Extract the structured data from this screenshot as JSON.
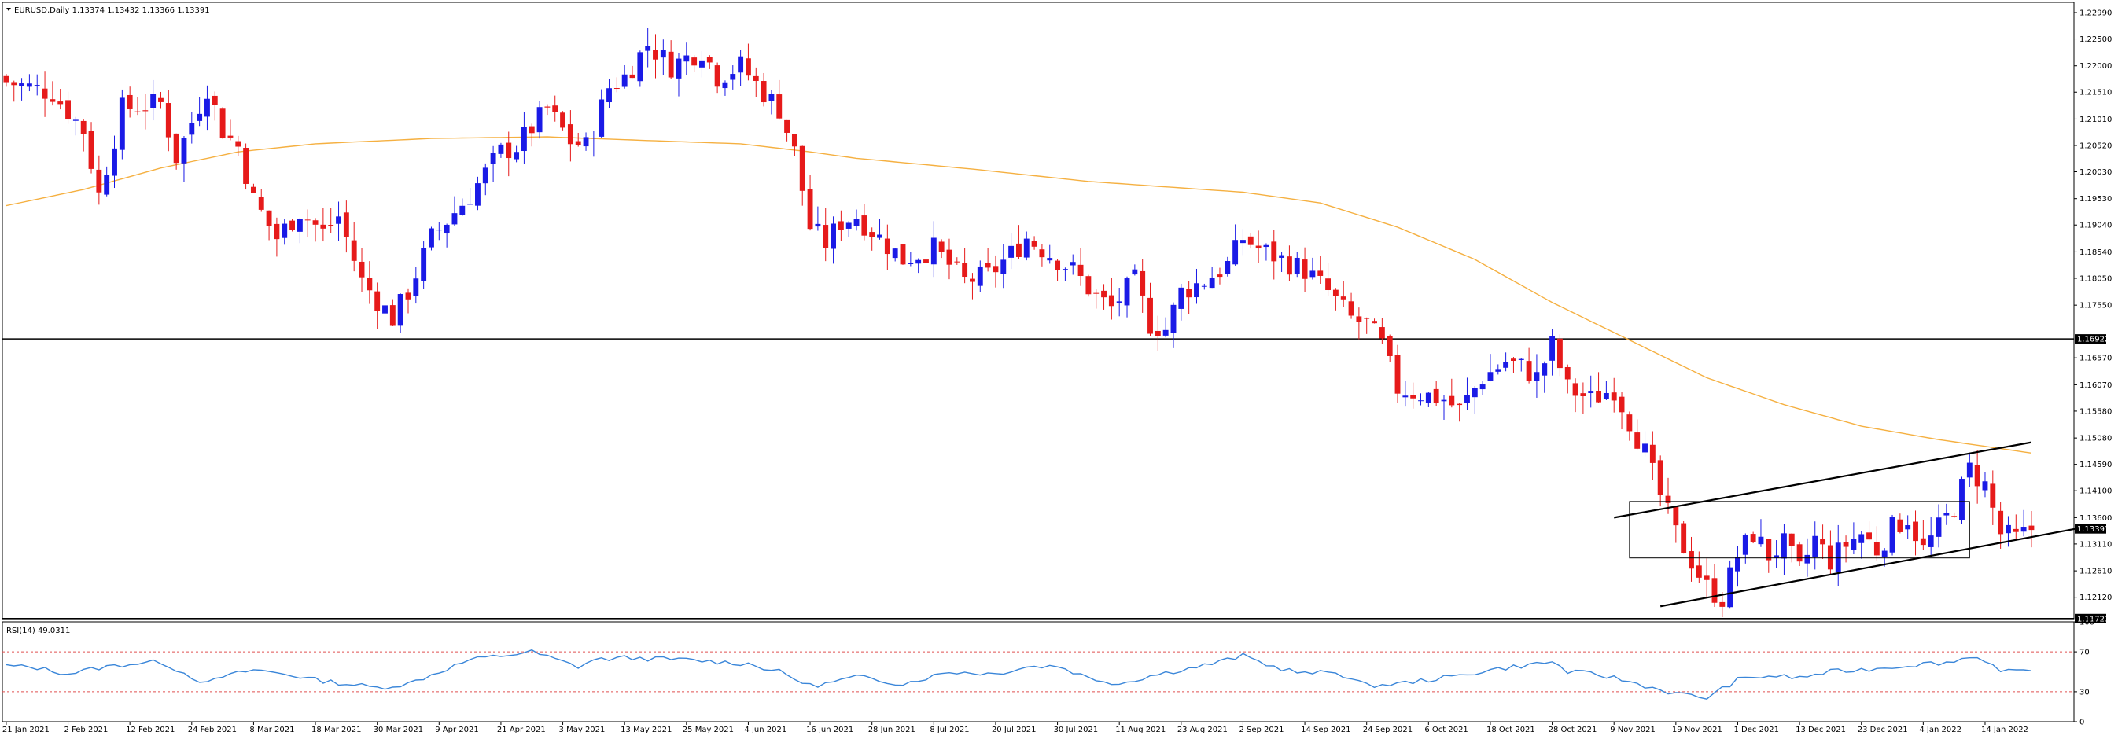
{
  "header": {
    "symbol_line": "EURUSD,Daily  1.13374 1.13432 1.13366 1.13391",
    "rsi_label": "RSI(14) 49.0311"
  },
  "colors": {
    "bull": "#1a1ae6",
    "bear": "#e61a1a",
    "ma": "#f5b041",
    "rsi": "#3a86d9",
    "rsi_levels": "#e05050",
    "hline": "#000000",
    "trend": "#000000"
  },
  "chart_data": [
    {
      "type": "candlestick",
      "title": "EURUSD,Daily",
      "ohlc_readout": [
        1.13374,
        1.13432,
        1.13366,
        1.13391
      ],
      "ylim": [
        1.1172,
        1.2318
      ],
      "y_ticks": [
        "1.22990",
        "1.22500",
        "1.22000",
        "1.21510",
        "1.21010",
        "1.20520",
        "1.20030",
        "1.19530",
        "1.19040",
        "1.18540",
        "1.18050",
        "1.17550",
        "1.16570",
        "1.16070",
        "1.15580",
        "1.15080",
        "1.14590",
        "1.14100",
        "1.13600",
        "1.13110",
        "1.12610",
        "1.12120"
      ],
      "price_markers": [
        {
          "label": "1.16922",
          "value": 1.16922
        },
        {
          "label": "1.13391",
          "value": 1.13391
        },
        {
          "label": "1.11723",
          "value": 1.11723
        }
      ],
      "horizontal_lines": [
        1.16922,
        1.11723
      ],
      "x_start_date": "2021-01-21",
      "x_ticks": [
        {
          "label": "21 Jan 2021",
          "i": 0
        },
        {
          "label": "2 Feb 2021",
          "i": 8
        },
        {
          "label": "12 Feb 2021",
          "i": 16
        },
        {
          "label": "24 Feb 2021",
          "i": 24
        },
        {
          "label": "8 Mar 2021",
          "i": 32
        },
        {
          "label": "18 Mar 2021",
          "i": 40
        },
        {
          "label": "30 Mar 2021",
          "i": 48
        },
        {
          "label": "9 Apr 2021",
          "i": 56
        },
        {
          "label": "21 Apr 2021",
          "i": 64
        },
        {
          "label": "3 May 2021",
          "i": 72
        },
        {
          "label": "13 May 2021",
          "i": 80
        },
        {
          "label": "25 May 2021",
          "i": 88
        },
        {
          "label": "4 Jun 2021",
          "i": 96
        },
        {
          "label": "16 Jun 2021",
          "i": 104
        },
        {
          "label": "28 Jun 2021",
          "i": 112
        },
        {
          "label": "8 Jul 2021",
          "i": 120
        },
        {
          "label": "20 Jul 2021",
          "i": 128
        },
        {
          "label": "30 Jul 2021",
          "i": 136
        },
        {
          "label": "11 Aug 2021",
          "i": 144
        },
        {
          "label": "23 Aug 2021",
          "i": 152
        },
        {
          "label": "2 Sep 2021",
          "i": 160
        },
        {
          "label": "14 Sep 2021",
          "i": 168
        },
        {
          "label": "24 Sep 2021",
          "i": 176
        },
        {
          "label": "6 Oct 2021",
          "i": 184
        },
        {
          "label": "18 Oct 2021",
          "i": 192
        },
        {
          "label": "28 Oct 2021",
          "i": 200
        },
        {
          "label": "9 Nov 2021",
          "i": 208
        },
        {
          "label": "19 Nov 2021",
          "i": 216
        },
        {
          "label": "1 Dec 2021",
          "i": 224
        },
        {
          "label": "13 Dec 2021",
          "i": 232
        },
        {
          "label": "23 Dec 2021",
          "i": 240
        },
        {
          "label": "4 Jan 2022",
          "i": 248
        },
        {
          "label": "14 Jan 2022",
          "i": 256
        }
      ],
      "close_path": [
        [
          0,
          1.217
        ],
        [
          6,
          1.215
        ],
        [
          10,
          1.208
        ],
        [
          12,
          1.196
        ],
        [
          15,
          1.212
        ],
        [
          20,
          1.213
        ],
        [
          22,
          1.203
        ],
        [
          26,
          1.216
        ],
        [
          28,
          1.208
        ],
        [
          30,
          1.205
        ],
        [
          32,
          1.195
        ],
        [
          35,
          1.188
        ],
        [
          38,
          1.193
        ],
        [
          41,
          1.189
        ],
        [
          43,
          1.192
        ],
        [
          46,
          1.18
        ],
        [
          50,
          1.173
        ],
        [
          52,
          1.178
        ],
        [
          55,
          1.188
        ],
        [
          60,
          1.196
        ],
        [
          64,
          1.204
        ],
        [
          66,
          1.205
        ],
        [
          70,
          1.212
        ],
        [
          73,
          1.206
        ],
        [
          75,
          1.205
        ],
        [
          78,
          1.216
        ],
        [
          80,
          1.218
        ],
        [
          83,
          1.224
        ],
        [
          86,
          1.22
        ],
        [
          90,
          1.223
        ],
        [
          92,
          1.218
        ],
        [
          95,
          1.22
        ],
        [
          98,
          1.215
        ],
        [
          100,
          1.212
        ],
        [
          102,
          1.204
        ],
        [
          104,
          1.19
        ],
        [
          106,
          1.187
        ],
        [
          108,
          1.191
        ],
        [
          110,
          1.192
        ],
        [
          113,
          1.188
        ],
        [
          116,
          1.184
        ],
        [
          120,
          1.186
        ],
        [
          124,
          1.18
        ],
        [
          127,
          1.181
        ],
        [
          130,
          1.185
        ],
        [
          132,
          1.188
        ],
        [
          134,
          1.186
        ],
        [
          138,
          1.182
        ],
        [
          141,
          1.177
        ],
        [
          143,
          1.175
        ],
        [
          146,
          1.18
        ],
        [
          148,
          1.172
        ],
        [
          150,
          1.171
        ],
        [
          152,
          1.178
        ],
        [
          155,
          1.18
        ],
        [
          158,
          1.183
        ],
        [
          160,
          1.188
        ],
        [
          162,
          1.186
        ],
        [
          165,
          1.184
        ],
        [
          168,
          1.182
        ],
        [
          171,
          1.178
        ],
        [
          174,
          1.173
        ],
        [
          176,
          1.172
        ],
        [
          178,
          1.168
        ],
        [
          180,
          1.16
        ],
        [
          183,
          1.159
        ],
        [
          186,
          1.158
        ],
        [
          188,
          1.156
        ],
        [
          191,
          1.162
        ],
        [
          194,
          1.165
        ],
        [
          196,
          1.164
        ],
        [
          198,
          1.162
        ],
        [
          200,
          1.168
        ],
        [
          202,
          1.16
        ],
        [
          205,
          1.158
        ],
        [
          208,
          1.16
        ],
        [
          210,
          1.154
        ],
        [
          212,
          1.148
        ],
        [
          214,
          1.14
        ],
        [
          216,
          1.133
        ],
        [
          218,
          1.128
        ],
        [
          220,
          1.123
        ],
        [
          222,
          1.121
        ],
        [
          224,
          1.129
        ],
        [
          226,
          1.133
        ],
        [
          228,
          1.129
        ],
        [
          230,
          1.131
        ],
        [
          232,
          1.126
        ],
        [
          234,
          1.132
        ],
        [
          236,
          1.128
        ],
        [
          238,
          1.131
        ],
        [
          240,
          1.133
        ],
        [
          242,
          1.13
        ],
        [
          244,
          1.134
        ],
        [
          246,
          1.136
        ],
        [
          248,
          1.13
        ],
        [
          250,
          1.134
        ],
        [
          252,
          1.138
        ],
        [
          254,
          1.145
        ],
        [
          256,
          1.142
        ],
        [
          258,
          1.133
        ],
        [
          260,
          1.132
        ],
        [
          262,
          1.1339
        ]
      ],
      "ma_path": [
        [
          0,
          1.194
        ],
        [
          10,
          1.197
        ],
        [
          20,
          1.201
        ],
        [
          30,
          1.204
        ],
        [
          40,
          1.2055
        ],
        [
          55,
          1.2065
        ],
        [
          70,
          1.2068
        ],
        [
          85,
          1.206
        ],
        [
          95,
          1.2055
        ],
        [
          104,
          1.204
        ],
        [
          110,
          1.2028
        ],
        [
          125,
          1.2008
        ],
        [
          140,
          1.1985
        ],
        [
          160,
          1.1965
        ],
        [
          170,
          1.1945
        ],
        [
          180,
          1.19
        ],
        [
          190,
          1.184
        ],
        [
          200,
          1.176
        ],
        [
          210,
          1.169
        ],
        [
          220,
          1.162
        ],
        [
          230,
          1.157
        ],
        [
          240,
          1.153
        ],
        [
          250,
          1.1505
        ],
        [
          262,
          1.148
        ]
      ],
      "rectangle": {
        "i1": 210,
        "i2": 254,
        "top": 1.139,
        "bottom": 1.1285
      },
      "channel": {
        "upper": [
          [
            208,
            1.136
          ],
          [
            262,
            1.15
          ]
        ],
        "lower": [
          [
            214,
            1.1195
          ],
          [
            268,
            1.134
          ]
        ]
      }
    },
    {
      "type": "line",
      "title": "RSI(14)",
      "last_value": 49.0311,
      "ylim": [
        0,
        100
      ],
      "y_ticks": [
        "100",
        "70",
        "30",
        "0"
      ],
      "levels": [
        70,
        30
      ],
      "values_path": [
        [
          0,
          56
        ],
        [
          4,
          54
        ],
        [
          8,
          48
        ],
        [
          12,
          54
        ],
        [
          16,
          58
        ],
        [
          20,
          60
        ],
        [
          24,
          45
        ],
        [
          26,
          38
        ],
        [
          28,
          45
        ],
        [
          32,
          52
        ],
        [
          36,
          48
        ],
        [
          40,
          42
        ],
        [
          44,
          38
        ],
        [
          48,
          34
        ],
        [
          52,
          38
        ],
        [
          56,
          50
        ],
        [
          60,
          62
        ],
        [
          64,
          66
        ],
        [
          68,
          70
        ],
        [
          70,
          65
        ],
        [
          74,
          55
        ],
        [
          76,
          62
        ],
        [
          80,
          64
        ],
        [
          84,
          63
        ],
        [
          88,
          62
        ],
        [
          92,
          60
        ],
        [
          96,
          58
        ],
        [
          100,
          50
        ],
        [
          104,
          36
        ],
        [
          106,
          38
        ],
        [
          110,
          45
        ],
        [
          116,
          38
        ],
        [
          122,
          50
        ],
        [
          128,
          48
        ],
        [
          132,
          55
        ],
        [
          136,
          56
        ],
        [
          140,
          44
        ],
        [
          144,
          38
        ],
        [
          148,
          46
        ],
        [
          152,
          52
        ],
        [
          156,
          58
        ],
        [
          160,
          66
        ],
        [
          164,
          55
        ],
        [
          168,
          48
        ],
        [
          172,
          50
        ],
        [
          176,
          36
        ],
        [
          180,
          38
        ],
        [
          184,
          42
        ],
        [
          188,
          46
        ],
        [
          192,
          52
        ],
        [
          196,
          56
        ],
        [
          200,
          60
        ],
        [
          202,
          50
        ],
        [
          205,
          48
        ],
        [
          208,
          44
        ],
        [
          212,
          36
        ],
        [
          216,
          28
        ],
        [
          220,
          24
        ],
        [
          224,
          42
        ],
        [
          228,
          46
        ],
        [
          232,
          44
        ],
        [
          236,
          50
        ],
        [
          240,
          52
        ],
        [
          244,
          55
        ],
        [
          248,
          58
        ],
        [
          252,
          60
        ],
        [
          254,
          66
        ],
        [
          256,
          62
        ],
        [
          258,
          50
        ],
        [
          262,
          50
        ]
      ]
    }
  ]
}
